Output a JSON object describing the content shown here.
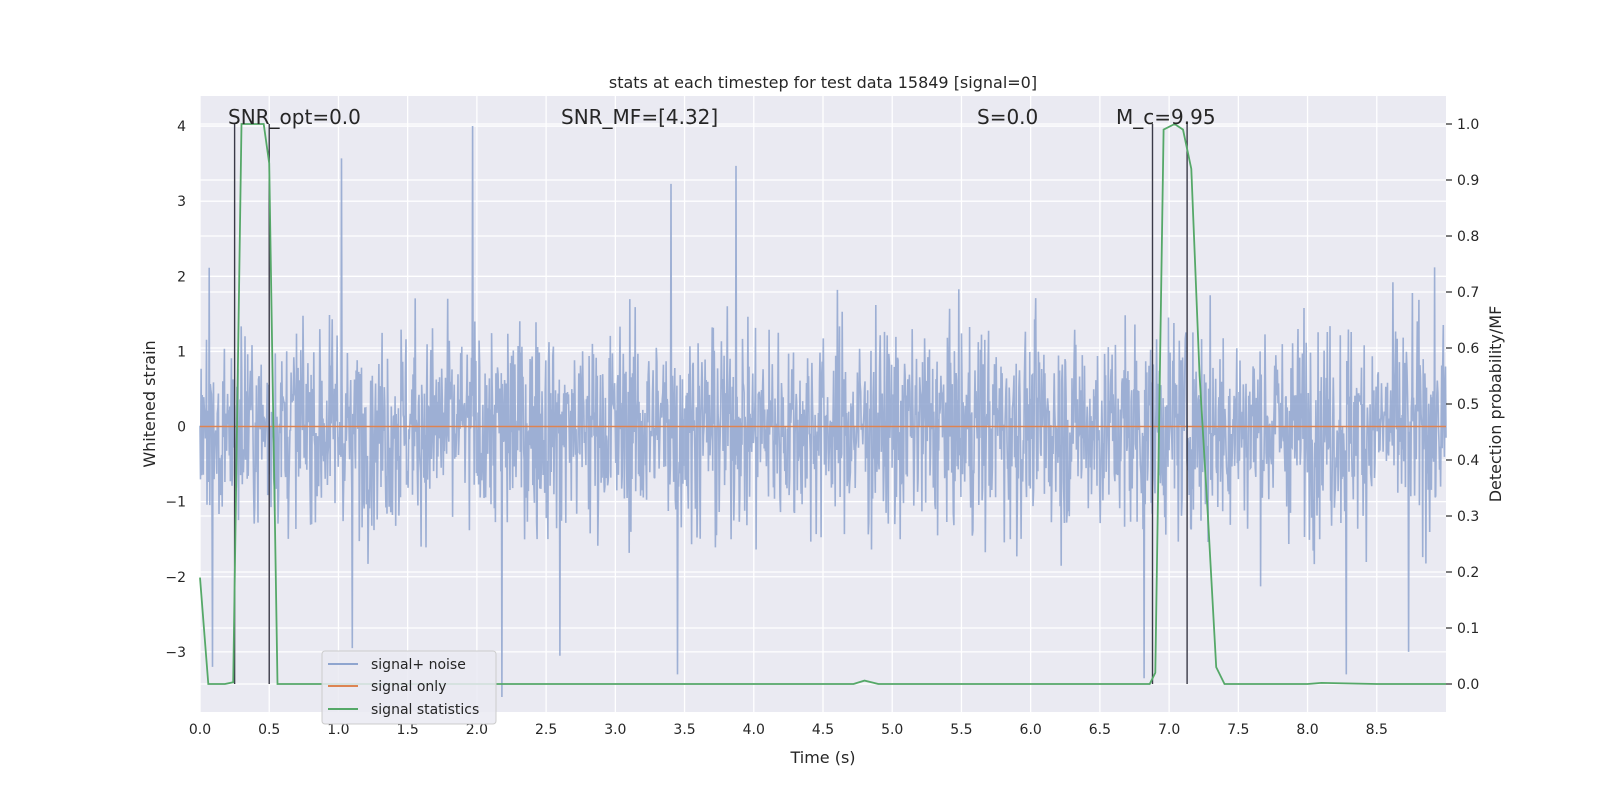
{
  "chart_data": {
    "type": "line",
    "title": "stats at each timestep for test data 15849 [signal=0]",
    "xlabel": "Time (s)",
    "ylabel": "Whitened strain",
    "y2label": "Detection probability/MF",
    "xlim": [
      0.0,
      9.0
    ],
    "ylim": [
      -3.8,
      4.4
    ],
    "y2lim": [
      -0.05,
      1.05
    ],
    "xticks": [
      0.0,
      0.5,
      1.0,
      1.5,
      2.0,
      2.5,
      3.0,
      3.5,
      4.0,
      4.5,
      5.0,
      5.5,
      6.0,
      6.5,
      7.0,
      7.5,
      8.0,
      8.5
    ],
    "xtick_labels": [
      "0.0",
      "0.5",
      "1.0",
      "1.5",
      "2.0",
      "2.5",
      "3.0",
      "3.5",
      "4.0",
      "4.5",
      "5.0",
      "5.5",
      "6.0",
      "6.5",
      "7.0",
      "7.5",
      "8.0",
      "8.5"
    ],
    "yticks": [
      -3,
      -2,
      -1,
      0,
      1,
      2,
      3,
      4
    ],
    "ytick_labels": [
      "−3",
      "−2",
      "−1",
      "0",
      "1",
      "2",
      "3",
      "4"
    ],
    "y2ticks": [
      0.0,
      0.1,
      0.2,
      0.3,
      0.4,
      0.5,
      0.6,
      0.7,
      0.8,
      0.9,
      1.0
    ],
    "y2tick_labels": [
      "0.0",
      "0.1",
      "0.2",
      "0.3",
      "0.4",
      "0.5",
      "0.6",
      "0.7",
      "0.8",
      "0.9",
      "1.0"
    ],
    "grid": true,
    "legend_position": "lower-left",
    "annotations": [
      {
        "label": "SNR_opt=0.0",
        "x": 0.2
      },
      {
        "label": "SNR_MF=[4.32]",
        "x": 2.6
      },
      {
        "label": "S=0.0",
        "x": 5.6
      },
      {
        "label": "M_c=9.95",
        "x": 6.6
      }
    ],
    "vlines_x": [
      0.25,
      0.5,
      6.88,
      7.13
    ],
    "series": [
      {
        "name": "signal+ noise",
        "color": "#8fa5cf",
        "axis": "left",
        "n_samples": 2300,
        "seed": 15849,
        "spikes": [
          {
            "x": 1.02,
            "y": 3.57
          },
          {
            "x": 1.97,
            "y": 4.0
          },
          {
            "x": 3.87,
            "y": 3.47
          },
          {
            "x": 3.4,
            "y": 3.23
          },
          {
            "x": 2.18,
            "y": -3.6
          },
          {
            "x": 0.09,
            "y": -3.2
          },
          {
            "x": 3.45,
            "y": -3.3
          },
          {
            "x": 8.73,
            "y": -3.0
          },
          {
            "x": 8.28,
            "y": -3.3
          },
          {
            "x": 1.1,
            "y": -2.95
          },
          {
            "x": 2.6,
            "y": -3.05
          },
          {
            "x": 6.82,
            "y": -3.35
          }
        ]
      },
      {
        "name": "signal only",
        "color": "#dd8452",
        "axis": "left",
        "x": [
          0.0,
          9.0
        ],
        "y": [
          0.0,
          0.0
        ]
      },
      {
        "name": "signal statistics",
        "color": "#55a868",
        "axis": "right",
        "x": [
          0.0,
          0.06,
          0.12,
          0.18,
          0.24,
          0.3,
          0.36,
          0.42,
          0.46,
          0.5,
          0.56,
          0.62,
          4.72,
          4.8,
          4.9,
          6.86,
          6.9,
          6.96,
          7.04,
          7.1,
          7.16,
          7.22,
          7.28,
          7.34,
          7.4,
          7.5,
          8.0,
          8.1,
          8.5,
          9.0
        ],
        "y": [
          0.19,
          0.0,
          0.0,
          0.0,
          0.003,
          1.0,
          1.0,
          1.0,
          1.0,
          0.93,
          0.0,
          0.0,
          0.0,
          0.006,
          0.0,
          0.0,
          0.02,
          0.99,
          1.0,
          0.99,
          0.92,
          0.55,
          0.3,
          0.03,
          0.0,
          0.0,
          0.0,
          0.002,
          0.0,
          0.0
        ]
      }
    ]
  }
}
